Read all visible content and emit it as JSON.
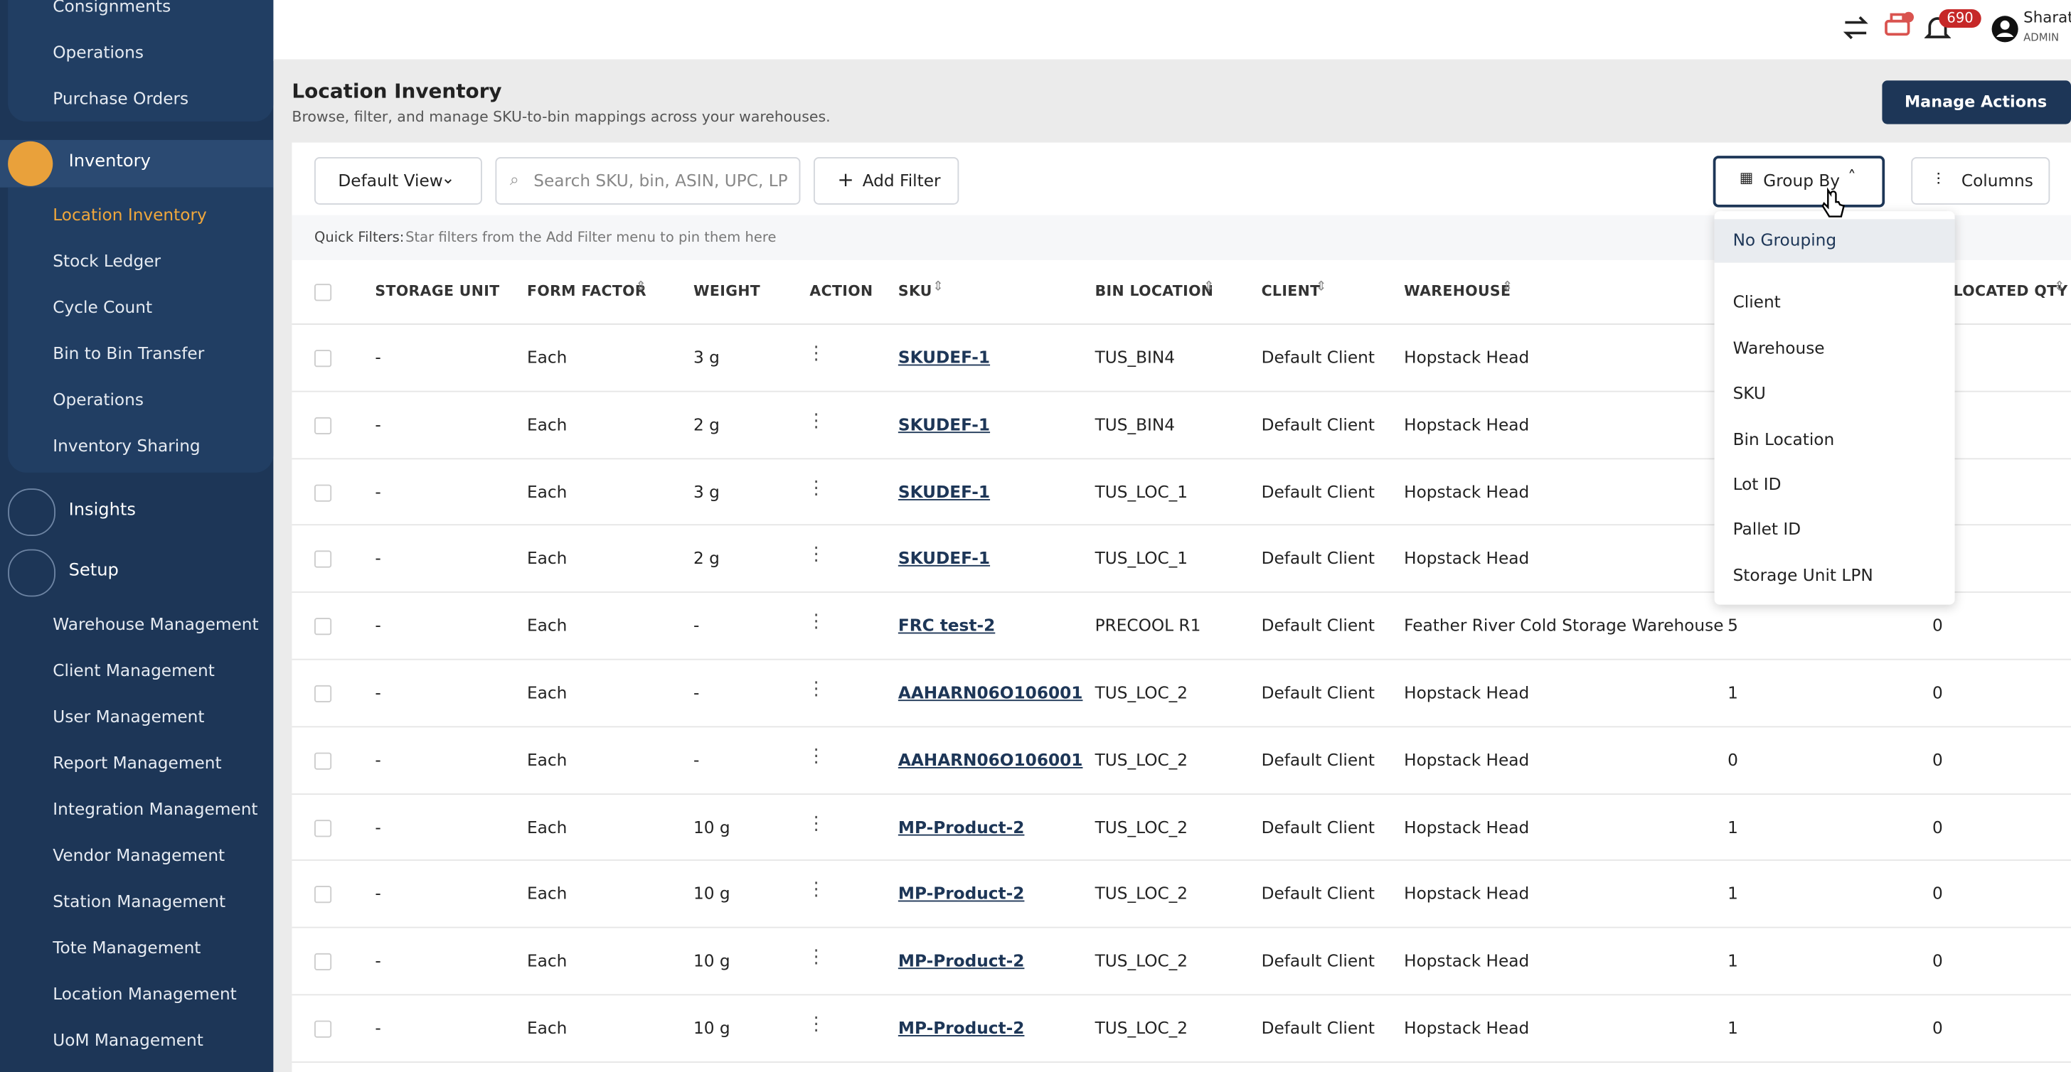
{
  "sidebar": {
    "top": [
      "Consignments",
      "Operations",
      "Purchase Orders"
    ],
    "inventory": {
      "label": "Inventory",
      "items": [
        "Location Inventory",
        "Stock Ledger",
        "Cycle Count",
        "Bin to Bin Transfer",
        "Operations",
        "Inventory Sharing"
      ]
    },
    "insights": "Insights",
    "setup": {
      "label": "Setup",
      "items": [
        "Warehouse Management",
        "Client Management",
        "User Management",
        "Report Management",
        "Integration Management",
        "Vendor Management",
        "Station Management",
        "Tote Management",
        "Location Management",
        "UoM Management"
      ]
    }
  },
  "header": {
    "badge": "690",
    "user": "Sharath",
    "role": "ADMIN"
  },
  "page": {
    "title": "Location Inventory",
    "subtitle": "Browse, filter, and manage SKU-to-bin mappings across your warehouses.",
    "manage": "Manage Actions"
  },
  "toolbar": {
    "view": "Default View",
    "search": "Search SKU, bin, ASIN, UPC, LP",
    "add_filter": "Add Filter",
    "group_by": "Group By",
    "columns": "Columns"
  },
  "quick_filters": {
    "label": "Quick Filters:",
    "hint": "Star filters from the Add Filter menu to pin them here"
  },
  "table": {
    "columns": [
      "STORAGE UNIT",
      "FORM FACTOR",
      "WEIGHT",
      "ACTION",
      "SKU",
      "BIN LOCATION",
      "CLIENT",
      "WAREHOUSE",
      "ALLOCATED QTY"
    ],
    "rows": [
      [
        "-",
        "Each",
        "3 g",
        "SKUDEF-1",
        "TUS_BIN4",
        "Default Client",
        "Hopstack Head",
        null,
        null
      ],
      [
        "-",
        "Each",
        "2 g",
        "SKUDEF-1",
        "TUS_BIN4",
        "Default Client",
        "Hopstack Head",
        null,
        null
      ],
      [
        "-",
        "Each",
        "3 g",
        "SKUDEF-1",
        "TUS_LOC_1",
        "Default Client",
        "Hopstack Head",
        null,
        null
      ],
      [
        "-",
        "Each",
        "2 g",
        "SKUDEF-1",
        "TUS_LOC_1",
        "Default Client",
        "Hopstack Head",
        null,
        null
      ],
      [
        "-",
        "Each",
        "-",
        "FRC test-2",
        "PRECOOL R1",
        "Default Client",
        "Feather River Cold Storage Warehouse",
        "5",
        "0"
      ],
      [
        "-",
        "Each",
        "-",
        "AAHARN06O106001",
        "TUS_LOC_2",
        "Default Client",
        "Hopstack Head",
        "1",
        "0"
      ],
      [
        "-",
        "Each",
        "-",
        "AAHARN06O106001",
        "TUS_LOC_2",
        "Default Client",
        "Hopstack Head",
        "0",
        "0"
      ],
      [
        "-",
        "Each",
        "10 g",
        "MP-Product-2",
        "TUS_LOC_2",
        "Default Client",
        "Hopstack Head",
        "1",
        "0"
      ],
      [
        "-",
        "Each",
        "10 g",
        "MP-Product-2",
        "TUS_LOC_2",
        "Default Client",
        "Hopstack Head",
        "1",
        "0"
      ],
      [
        "-",
        "Each",
        "10 g",
        "MP-Product-2",
        "TUS_LOC_2",
        "Default Client",
        "Hopstack Head",
        "1",
        "0"
      ],
      [
        "-",
        "Each",
        "10 g",
        "MP-Product-2",
        "TUS_LOC_2",
        "Default Client",
        "Hopstack Head",
        "1",
        "0"
      ]
    ]
  },
  "group_menu": [
    "No Grouping",
    "Client",
    "Warehouse",
    "SKU",
    "Bin Location",
    "Lot ID",
    "Pallet ID",
    "Storage Unit LPN"
  ]
}
